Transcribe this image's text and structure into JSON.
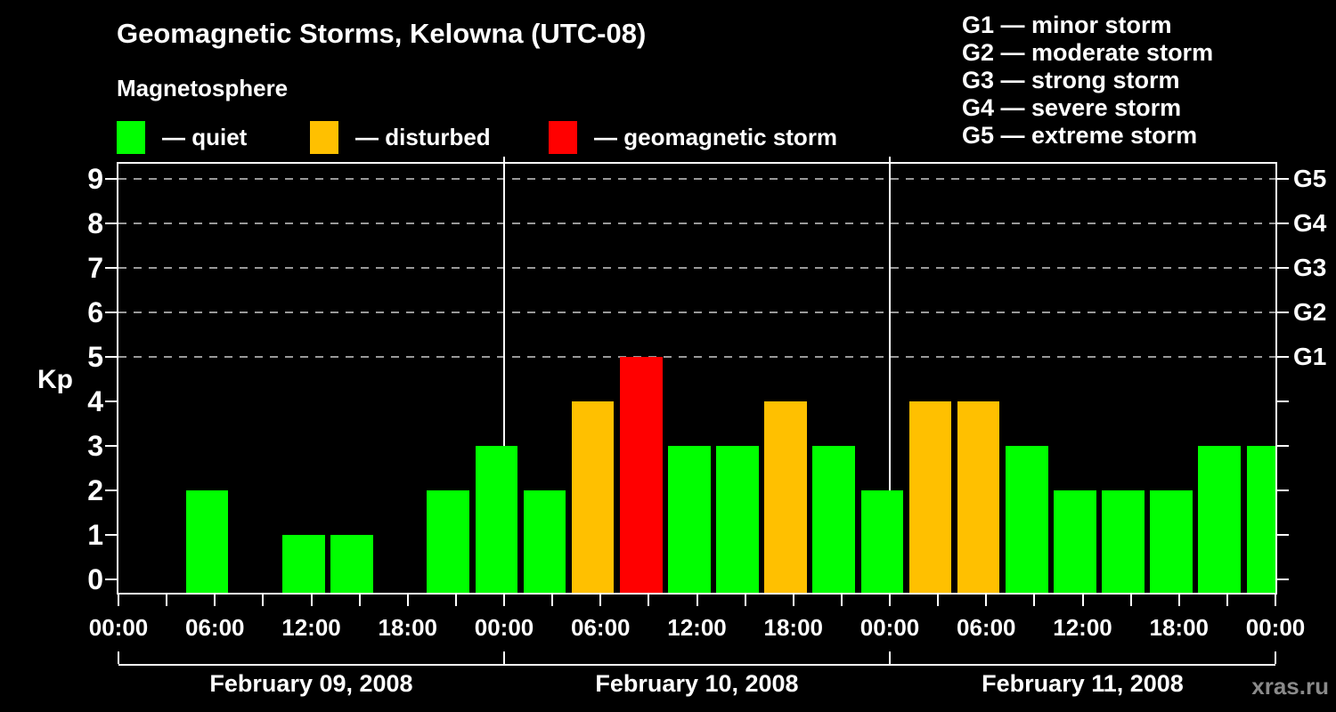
{
  "title": "Geomagnetic Storms, Kelowna (UTC-08)",
  "subtitle": "Magnetosphere",
  "legend": {
    "items": [
      {
        "key": "quiet",
        "label": "— quiet",
        "color": "#00ff00"
      },
      {
        "key": "disturbed",
        "label": "— disturbed",
        "color": "#ffc000"
      },
      {
        "key": "storm",
        "label": "— geomagnetic storm",
        "color": "#ff0000"
      }
    ]
  },
  "g_legend": {
    "items": [
      {
        "label": "G1 — minor storm"
      },
      {
        "label": "G2 — moderate storm"
      },
      {
        "label": "G3 — strong storm"
      },
      {
        "label": "G4 — severe storm"
      },
      {
        "label": "G5 — extreme storm"
      }
    ]
  },
  "watermark": "xras.ru",
  "chart_data": {
    "type": "bar",
    "title": "Geomagnetic Storms, Kelowna (UTC-08)",
    "ylabel": "Kp",
    "ylim": [
      -0.3,
      9.4
    ],
    "y_ticks": [
      0,
      1,
      2,
      3,
      4,
      5,
      6,
      7,
      8,
      9
    ],
    "gridlines_at_kp": [
      5,
      6,
      7,
      8,
      9
    ],
    "grid_style": "dashed horizontal lines at Kp 5-9 only",
    "right_axis_labels": [
      {
        "label": "G1",
        "kp": 5
      },
      {
        "label": "G2",
        "kp": 6
      },
      {
        "label": "G3",
        "kp": 7
      },
      {
        "label": "G4",
        "kp": 8
      },
      {
        "label": "G5",
        "kp": 9
      }
    ],
    "interval_hours": 3,
    "x_tick_interval_hours": 3,
    "x_label_interval_hours": 6,
    "x_tick_labels": [
      "00:00",
      "06:00",
      "12:00",
      "18:00",
      "00:00",
      "06:00",
      "12:00",
      "18:00",
      "00:00",
      "06:00",
      "12:00",
      "18:00",
      "00:00"
    ],
    "days": [
      {
        "date": "February 09, 2008",
        "kp": [
          0,
          2,
          0,
          1,
          1,
          0,
          2,
          3
        ]
      },
      {
        "date": "February 10, 2008",
        "kp": [
          2,
          4,
          5,
          3,
          3,
          4,
          3,
          2
        ]
      },
      {
        "date": "February 11, 2008",
        "kp": [
          4,
          4,
          3,
          2,
          2,
          2,
          3,
          3
        ]
      }
    ],
    "color_rule": {
      "quiet": "kp<=3",
      "disturbed": "kp==4",
      "storm": "kp>=5"
    },
    "colors": {
      "quiet": "#00ff00",
      "disturbed": "#ffc000",
      "storm": "#ff0000",
      "axis": "#ffffff",
      "grid": "#999999",
      "text": "#ffffff",
      "watermark": "#8a8a8a",
      "background": "#000000"
    }
  }
}
